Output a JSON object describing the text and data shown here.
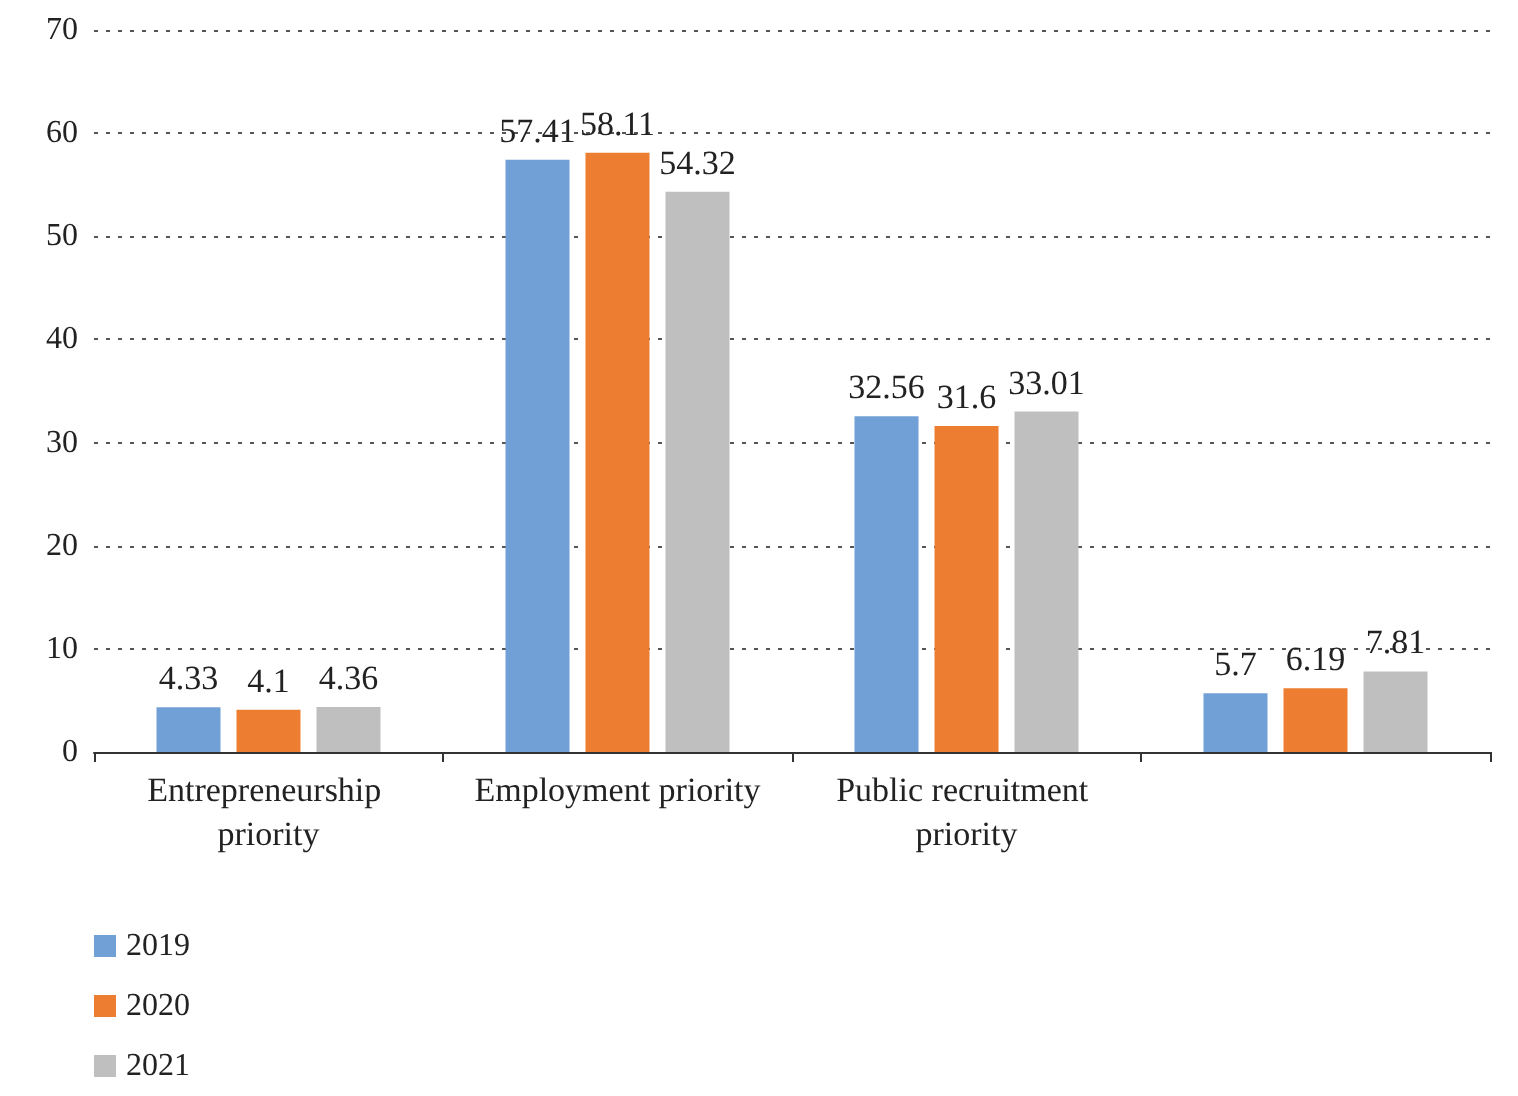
{
  "chart_data": {
    "type": "bar",
    "categories": [
      "Entrepreneurship priority",
      "Employment priority",
      "Public recruitment priority",
      null
    ],
    "series": [
      {
        "name": "2019",
        "color": "#70a0d6",
        "values": [
          4.33,
          57.41,
          32.56,
          5.7
        ]
      },
      {
        "name": "2020",
        "color": "#ed7d31",
        "values": [
          4.1,
          58.11,
          31.6,
          6.19
        ]
      },
      {
        "name": "2021",
        "color": "#bfbfbf",
        "values": [
          4.36,
          54.32,
          33.01,
          7.81
        ]
      }
    ],
    "ylim": [
      0,
      70
    ],
    "yticks": [
      0,
      10,
      20,
      30,
      40,
      50,
      60,
      70
    ],
    "grid": "y",
    "legend": "bottom left",
    "data_labels": true
  }
}
